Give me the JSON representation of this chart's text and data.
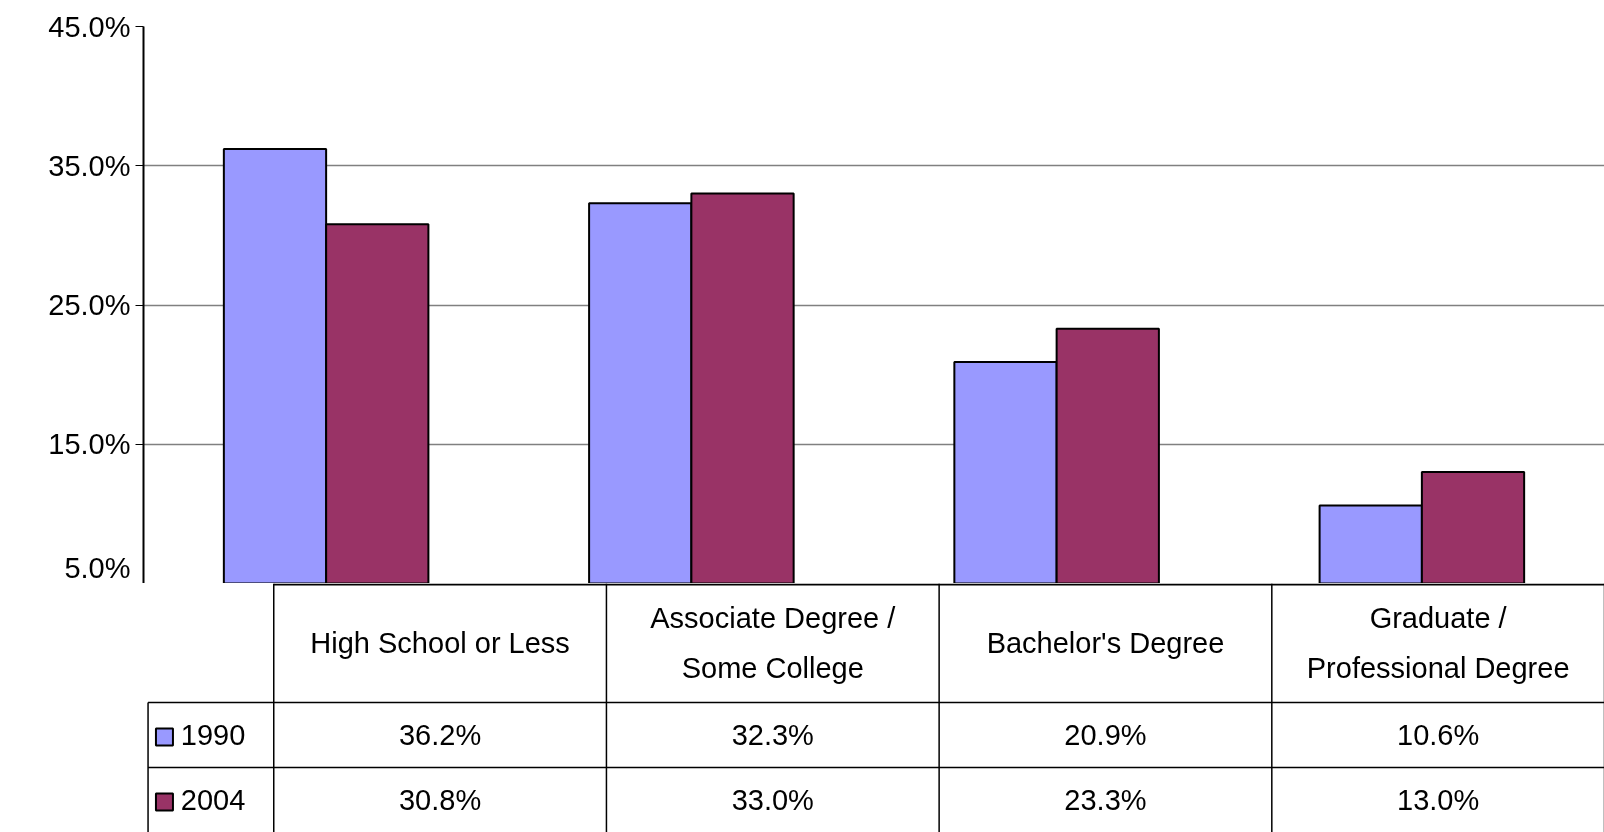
{
  "chart_data": {
    "type": "bar",
    "categories": [
      "High School or Less",
      "Associate Degree /\nSome College",
      "Bachelor's Degree",
      "Graduate /\nProfessional Degree"
    ],
    "series": [
      {
        "name": "1990",
        "color": "#9999ff",
        "values": [
          36.2,
          32.3,
          20.9,
          10.6
        ],
        "value_labels": [
          "36.2%",
          "32.3%",
          "20.9%",
          "10.6%"
        ]
      },
      {
        "name": "2004",
        "color": "#993366",
        "values": [
          30.8,
          33.0,
          23.3,
          13.0
        ],
        "value_labels": [
          "30.8%",
          "33.0%",
          "23.3%",
          "13.0%"
        ]
      }
    ],
    "ylim": [
      5,
      45
    ],
    "yticks": [
      {
        "value": 5,
        "label": "5.0%"
      },
      {
        "value": 15,
        "label": "15.0%"
      },
      {
        "value": 25,
        "label": "25.0%"
      },
      {
        "value": 35,
        "label": "35.0%"
      },
      {
        "value": 45,
        "label": "45.0%"
      }
    ],
    "grid": "y",
    "legend": "bottom left"
  }
}
